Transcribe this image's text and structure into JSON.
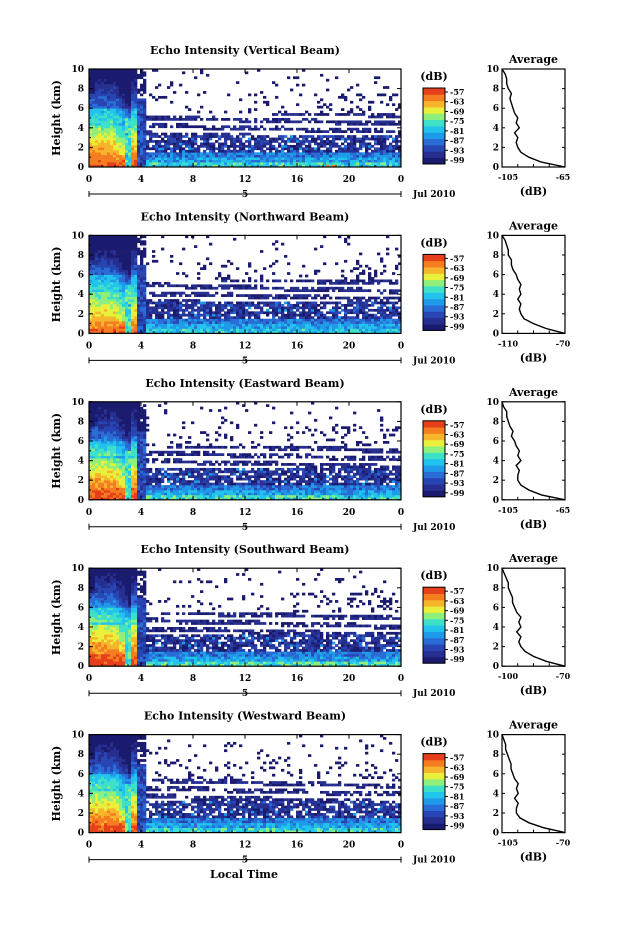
{
  "colors": {
    "scale": [
      "#1a1a6e",
      "#262f8f",
      "#2846b3",
      "#2a6cd6",
      "#1f9ae8",
      "#22c3ec",
      "#3ee0c8",
      "#8ef07a",
      "#e8f03c",
      "#f6b52a",
      "#f47d1f",
      "#e5401b"
    ],
    "nodata": "#ffffff",
    "axis": "#000000"
  },
  "panels": [
    {
      "id": "vertical",
      "title": "Echo Intensity (Vertical Beam)",
      "cb_label": "(dB)",
      "cb_ticks": [
        "-57",
        "-63",
        "-69",
        "-75",
        "-81",
        "-87",
        "-93",
        "-99"
      ],
      "avg_title": "Average",
      "avg_xlabel": "(dB)",
      "avg_xticks": [
        "-105",
        "-65"
      ]
    },
    {
      "id": "northward",
      "title": "Echo Intensity (Northward Beam)",
      "cb_label": "(dB)",
      "cb_ticks": [
        "-57",
        "-63",
        "-69",
        "-75",
        "-81",
        "-87",
        "-93",
        "-99"
      ],
      "avg_title": "Average",
      "avg_xlabel": "(dB)",
      "avg_xticks": [
        "-110",
        "-70"
      ]
    },
    {
      "id": "eastward",
      "title": "Echo Intensity (Eastward Beam)",
      "cb_label": "(dB)",
      "cb_ticks": [
        "-57",
        "-63",
        "-69",
        "-75",
        "-81",
        "-87",
        "-93",
        "-99"
      ],
      "avg_title": "Average",
      "avg_xlabel": "(dB)",
      "avg_xticks": [
        "-105",
        "-65"
      ]
    },
    {
      "id": "southward",
      "title": "Echo Intensity (Southward Beam)",
      "cb_label": "(dB)",
      "cb_ticks": [
        "-57",
        "-63",
        "-69",
        "-75",
        "-81",
        "-87",
        "-93",
        "-99"
      ],
      "avg_title": "Average",
      "avg_xlabel": "(dB)",
      "avg_xticks": [
        "-100",
        "-70"
      ]
    },
    {
      "id": "westward",
      "title": "Echo Intensity (Westward Beam)",
      "cb_label": "(dB)",
      "cb_ticks": [
        "-57",
        "-63",
        "-69",
        "-75",
        "-81",
        "-87",
        "-93",
        "-99"
      ],
      "avg_title": "Average",
      "avg_xlabel": "(dB)",
      "avg_xticks": [
        "-105",
        "-70"
      ]
    }
  ],
  "shared": {
    "ylabel": "Height (km)",
    "yticks": [
      "0",
      "2",
      "4",
      "6",
      "8",
      "10"
    ],
    "xticks": [
      "0",
      "4",
      "8",
      "12",
      "16",
      "20",
      "0"
    ],
    "date_day": "5",
    "date_label": "Jul 2010",
    "xlabel": "Local Time"
  },
  "chart_data": {
    "type": "heatmap",
    "x_unit": "hours (local time, from 0 on 5 Jul 2010)",
    "xlim": [
      0,
      24
    ],
    "ylim": [
      0,
      10
    ],
    "ylabel": "Height (km)",
    "xlabel": "Local Time",
    "colorbar": {
      "label": "(dB)",
      "ticks": [
        -57,
        -63,
        -69,
        -75,
        -81,
        -87,
        -93,
        -99
      ],
      "range": [
        -99,
        -57
      ]
    },
    "panels": [
      {
        "title": "Echo Intensity (Vertical Beam)",
        "avg_profile": {
          "height_km": [
            0,
            0.5,
            1,
            1.5,
            2,
            2.5,
            3,
            3.5,
            4,
            4.5,
            5,
            5.5,
            6,
            6.5,
            7,
            7.5,
            8,
            8.5,
            9,
            9.5,
            10
          ],
          "db": [
            -65,
            -80,
            -88,
            -93,
            -95,
            -96,
            -95,
            -97,
            -94,
            -96,
            -95,
            -97,
            -98,
            -99,
            -100,
            -99,
            -101,
            -102,
            -102,
            -103,
            -105
          ],
          "xlim": [
            -105,
            -65
          ]
        }
      },
      {
        "title": "Echo Intensity (Northward Beam)",
        "avg_profile": {
          "height_km": [
            0,
            0.5,
            1,
            1.5,
            2,
            2.5,
            3,
            3.5,
            4,
            4.5,
            5,
            5.5,
            6,
            6.5,
            7,
            7.5,
            8,
            8.5,
            9,
            9.5,
            10
          ],
          "db": [
            -70,
            -82,
            -90,
            -96,
            -98,
            -99,
            -98,
            -100,
            -98,
            -99,
            -98,
            -100,
            -101,
            -103,
            -104,
            -104,
            -106,
            -106,
            -107,
            -108,
            -110
          ],
          "xlim": [
            -110,
            -70
          ]
        }
      },
      {
        "title": "Echo Intensity (Eastward Beam)",
        "avg_profile": {
          "height_km": [
            0,
            0.5,
            1,
            1.5,
            2,
            2.5,
            3,
            3.5,
            4,
            4.5,
            5,
            5.5,
            6,
            6.5,
            7,
            7.5,
            8,
            8.5,
            9,
            9.5,
            10
          ],
          "db": [
            -65,
            -80,
            -88,
            -93,
            -95,
            -95,
            -94,
            -96,
            -93,
            -95,
            -94,
            -96,
            -97,
            -99,
            -98,
            -100,
            -101,
            -102,
            -102,
            -104,
            -105
          ],
          "xlim": [
            -105,
            -65
          ]
        }
      },
      {
        "title": "Echo Intensity (Southward Beam)",
        "avg_profile": {
          "height_km": [
            0,
            0.5,
            1,
            1.5,
            2,
            2.5,
            3,
            3.5,
            4,
            4.5,
            5,
            5.5,
            6,
            6.5,
            7,
            7.5,
            8,
            8.5,
            9,
            9.5,
            10
          ],
          "db": [
            -70,
            -79,
            -85,
            -89,
            -91,
            -92,
            -91,
            -93,
            -91,
            -92,
            -91,
            -93,
            -94,
            -95,
            -95,
            -96,
            -97,
            -97,
            -98,
            -99,
            -100
          ],
          "xlim": [
            -100,
            -70
          ]
        }
      },
      {
        "title": "Echo Intensity (Westward Beam)",
        "avg_profile": {
          "height_km": [
            0,
            0.5,
            1,
            1.5,
            2,
            2.5,
            3,
            3.5,
            4,
            4.5,
            5,
            5.5,
            6,
            6.5,
            7,
            7.5,
            8,
            8.5,
            9,
            9.5,
            10
          ],
          "db": [
            -70,
            -82,
            -90,
            -95,
            -97,
            -97,
            -96,
            -98,
            -96,
            -97,
            -96,
            -98,
            -99,
            -100,
            -100,
            -101,
            -102,
            -103,
            -103,
            -104,
            -105
          ],
          "xlim": [
            -105,
            -70
          ]
        }
      }
    ]
  }
}
